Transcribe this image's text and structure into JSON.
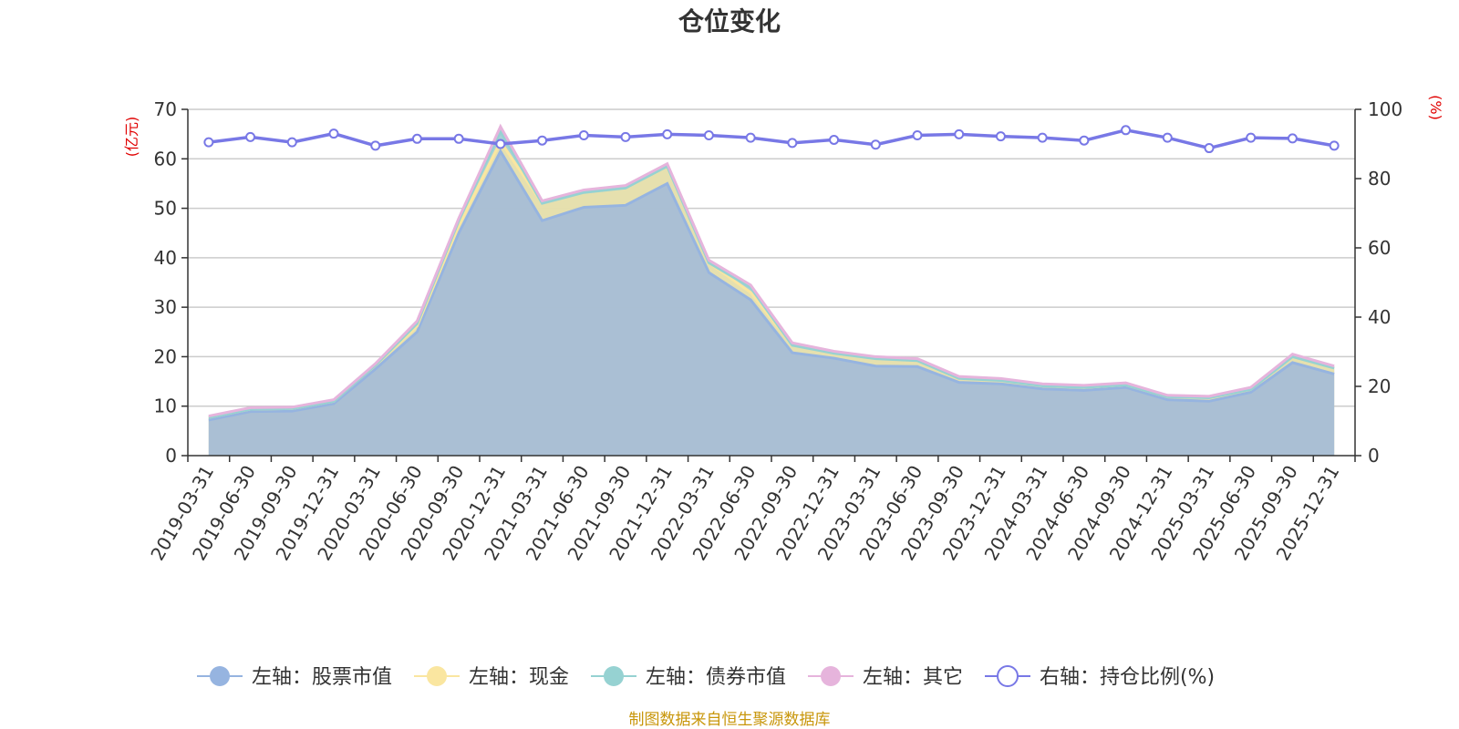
{
  "chart_data": {
    "type": "area",
    "title": "仓位变化",
    "source_note": "制图数据来自恒生聚源数据库",
    "left_axis": {
      "unit": "(亿元)",
      "min": 0,
      "max": 70,
      "ticks": [
        0,
        10,
        20,
        30,
        40,
        50,
        60,
        70
      ]
    },
    "right_axis": {
      "unit": "(%)",
      "min": 0,
      "max": 100,
      "ticks": [
        0,
        20,
        40,
        60,
        80,
        100
      ]
    },
    "categories": [
      "2019-03-31",
      "2019-06-30",
      "2019-09-30",
      "2019-12-31",
      "2020-03-31",
      "2020-06-30",
      "2020-09-30",
      "2020-12-31",
      "2021-03-31",
      "2021-06-30",
      "2021-09-30",
      "2021-12-31",
      "2022-03-31",
      "2022-06-30",
      "2022-09-30",
      "2022-12-31",
      "2023-03-31",
      "2023-06-30",
      "2023-09-30",
      "2023-12-31",
      "2024-03-31",
      "2024-06-30",
      "2024-09-30",
      "2024-12-31",
      "2025-03-31",
      "2025-06-30",
      "2025-09-30",
      "2025-12-31"
    ],
    "series": [
      {
        "name": "左轴：股票市值",
        "axis": "left",
        "stacked": true,
        "color": "#96b4e0",
        "values": [
          7.2,
          8.9,
          9.0,
          10.5,
          17.5,
          25.0,
          45.0,
          61.5,
          47.5,
          50.2,
          50.6,
          55.0,
          37.0,
          31.5,
          20.8,
          19.7,
          18.1,
          18.0,
          14.8,
          14.5,
          13.5,
          13.2,
          13.8,
          11.3,
          11.0,
          12.8,
          18.8,
          16.5
        ]
      },
      {
        "name": "左轴：现金",
        "axis": "left",
        "stacked": true,
        "color": "#fae6a0",
        "values": [
          0.5,
          0.5,
          0.5,
          0.5,
          0.8,
          1.2,
          1.5,
          2.0,
          3.5,
          3.0,
          3.5,
          3.5,
          2.0,
          1.5,
          1.5,
          1.0,
          1.5,
          1.2,
          0.8,
          0.7,
          0.6,
          0.6,
          0.5,
          0.6,
          0.7,
          0.6,
          1.2,
          1.2
        ]
      },
      {
        "name": "左轴：债券市值",
        "axis": "left",
        "stacked": true,
        "color": "#96d2d2",
        "values": [
          0.0,
          0.0,
          0.0,
          0.0,
          0.0,
          0.5,
          1.0,
          2.0,
          0.0,
          0.0,
          0.0,
          0.0,
          0.0,
          1.0,
          0.0,
          0.0,
          0.0,
          0.0,
          0.0,
          0.0,
          0.0,
          0.0,
          0.0,
          0.0,
          0.0,
          0.0,
          0.0,
          0.0
        ]
      },
      {
        "name": "左轴：其它",
        "axis": "left",
        "stacked": true,
        "color": "#e6b4dc",
        "values": [
          0.3,
          0.3,
          0.3,
          0.3,
          0.3,
          0.5,
          0.5,
          1.0,
          0.5,
          0.5,
          0.5,
          0.5,
          0.5,
          0.5,
          0.5,
          0.4,
          0.4,
          0.4,
          0.4,
          0.4,
          0.4,
          0.4,
          0.4,
          0.3,
          0.3,
          0.4,
          0.5,
          0.4
        ]
      },
      {
        "name": "右轴：持仓比例(%)",
        "axis": "right",
        "type": "line",
        "color": "#7878e6",
        "values": [
          90.5,
          92.0,
          90.5,
          93.0,
          89.5,
          91.5,
          91.5,
          90.0,
          91.0,
          92.5,
          92.0,
          92.8,
          92.5,
          91.8,
          90.3,
          91.2,
          89.8,
          92.5,
          92.8,
          92.2,
          91.8,
          91.0,
          94.0,
          91.8,
          88.8,
          91.8,
          91.6,
          89.5
        ]
      }
    ],
    "grid": true,
    "legend_position": "bottom"
  }
}
